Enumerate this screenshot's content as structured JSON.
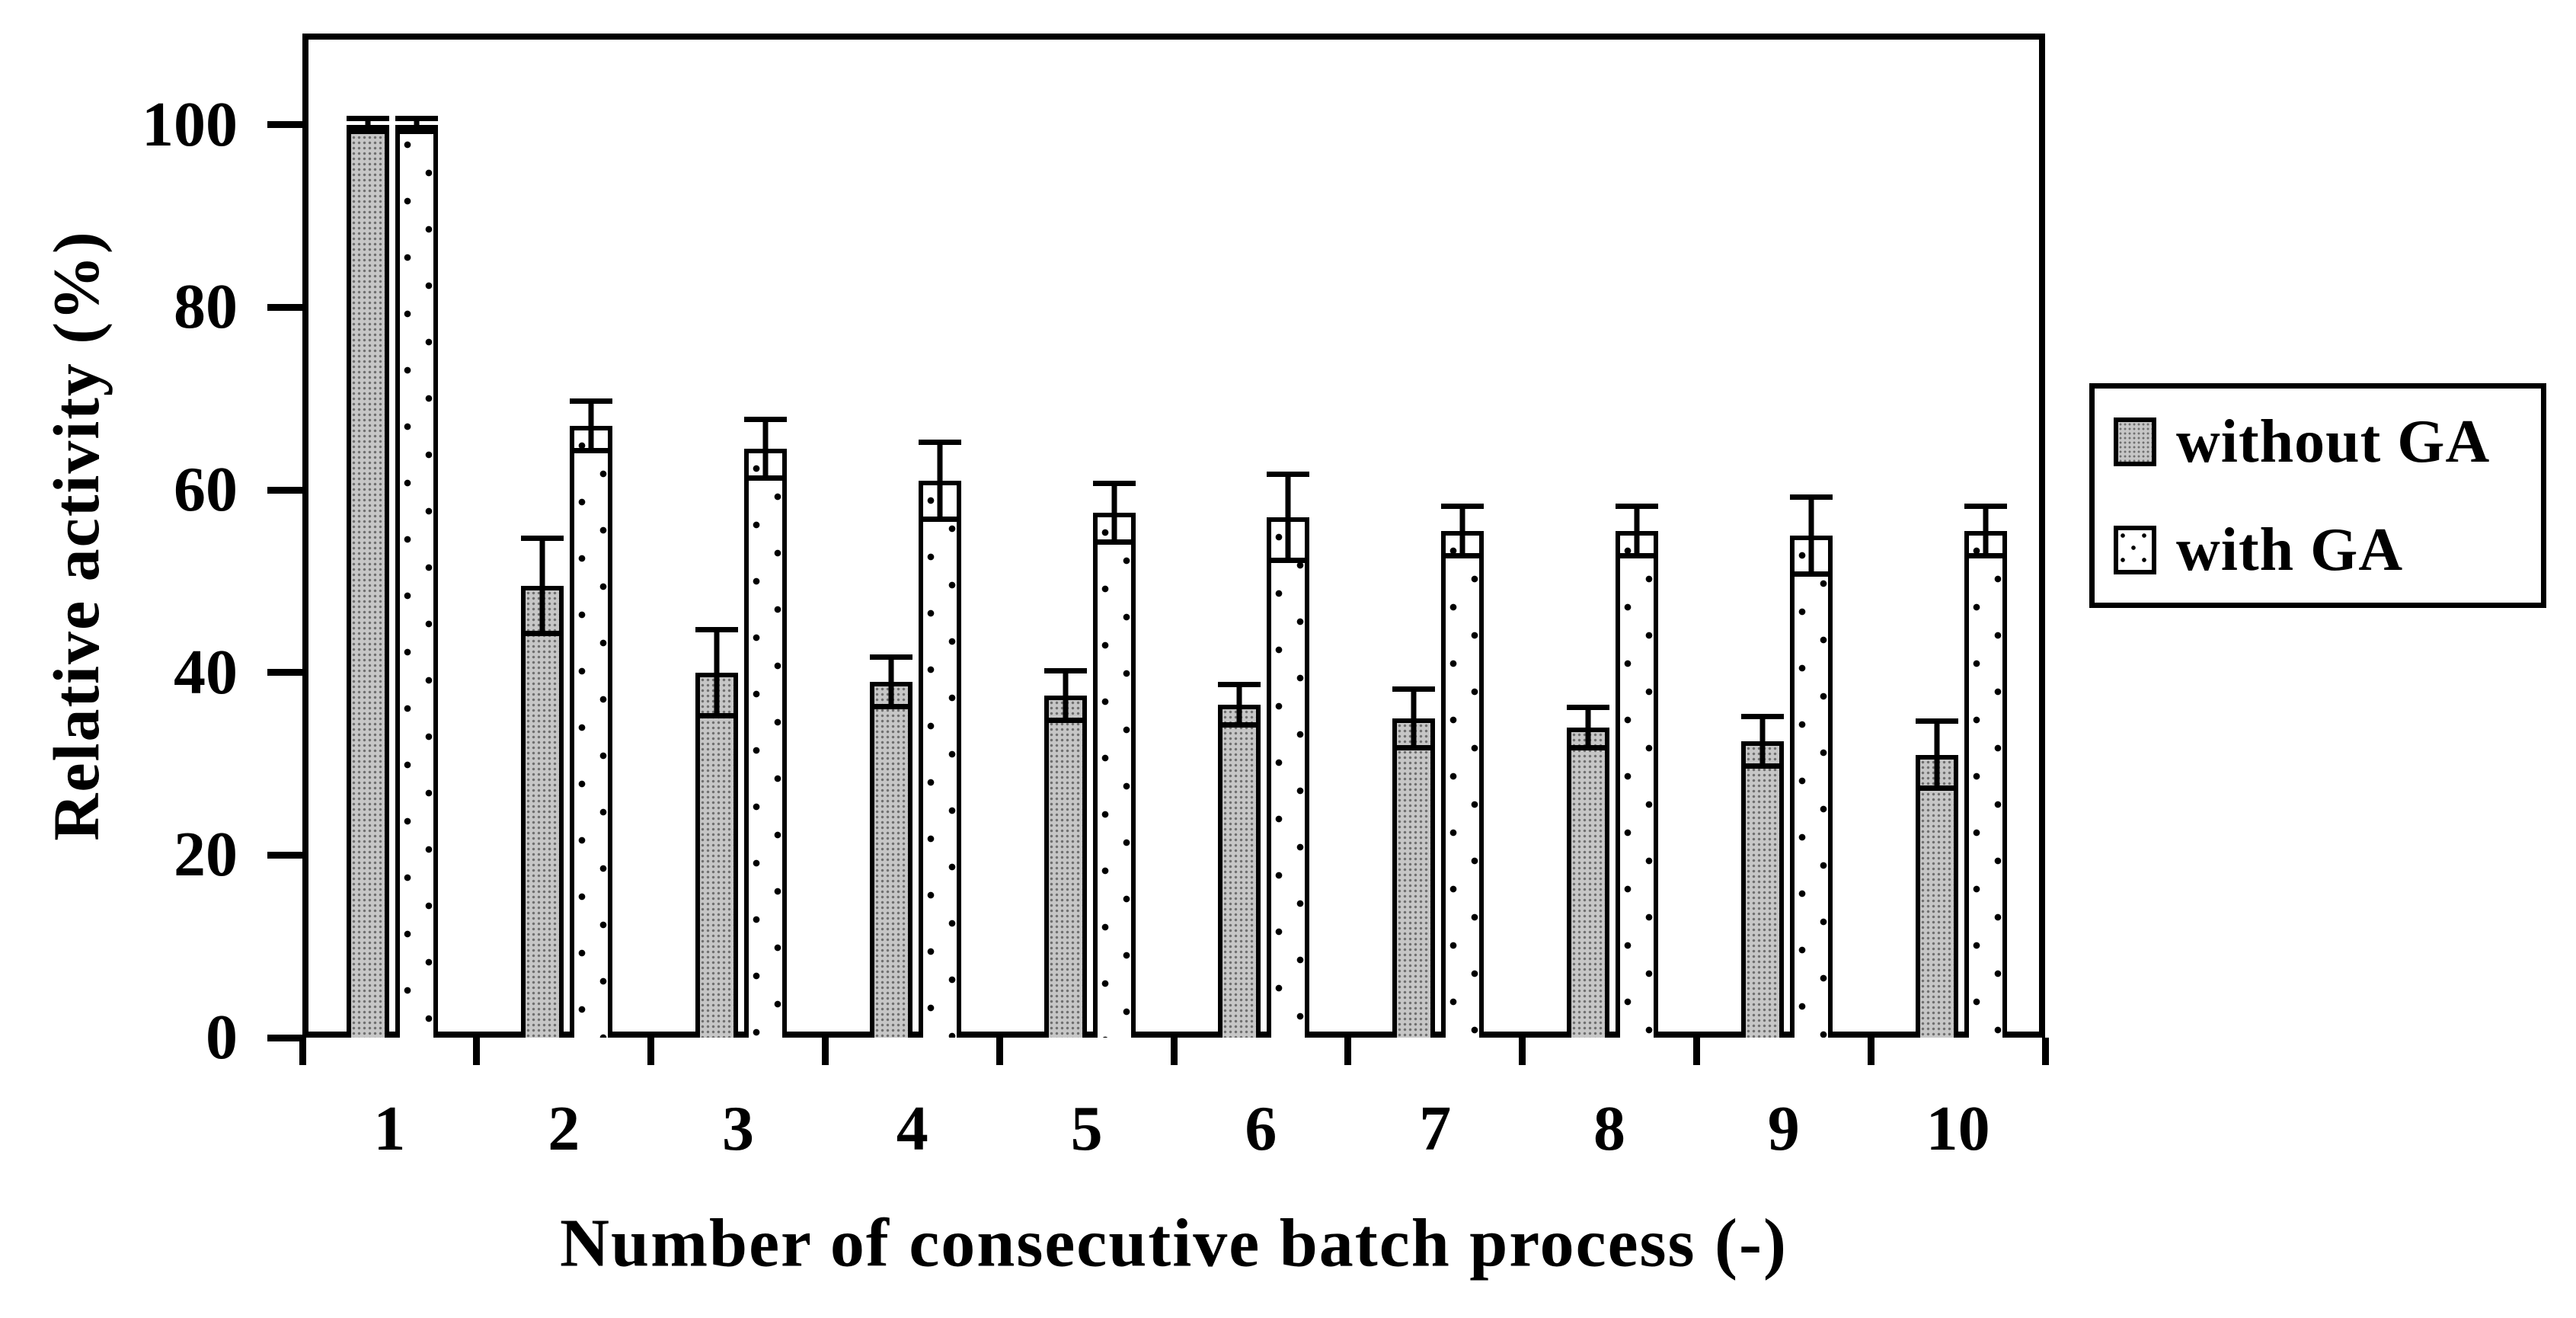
{
  "chart_data": {
    "type": "bar",
    "title": "",
    "xlabel": "Number of consecutive batch process (-)",
    "ylabel": "Relative activity (%)",
    "categories": [
      "1",
      "2",
      "3",
      "4",
      "5",
      "6",
      "7",
      "8",
      "9",
      "10"
    ],
    "series": [
      {
        "name": "without GA",
        "style": "gray-stipple",
        "values": [
          100,
          49.5,
          40,
          39,
          37.5,
          36.5,
          35,
          34,
          32.5,
          31
        ],
        "errors": [
          1,
          5.5,
          5,
          3,
          3,
          2.5,
          3.5,
          2.5,
          3,
          4
        ]
      },
      {
        "name": "with GA",
        "style": "white-dotted",
        "values": [
          100,
          67,
          64.5,
          61,
          57.5,
          57,
          55.5,
          55.5,
          55,
          55.5
        ],
        "errors": [
          1,
          3,
          3.5,
          4.5,
          3.5,
          5,
          3,
          3,
          4.5,
          3
        ]
      }
    ],
    "y_ticks": [
      0,
      20,
      40,
      60,
      80,
      100
    ],
    "y_tick_labels": [
      "0",
      "20",
      "40",
      "60",
      "80",
      "100"
    ],
    "ylim": [
      0,
      110
    ],
    "grid": false,
    "error_bars": true,
    "legend_position": "right-outside",
    "colors": {
      "bar_gray": "#c6c6c6",
      "bar_dotted_bg": "#ffffff",
      "outline": "#000000",
      "axis": "#000000",
      "text": "#000000",
      "background": "#ffffff"
    }
  }
}
